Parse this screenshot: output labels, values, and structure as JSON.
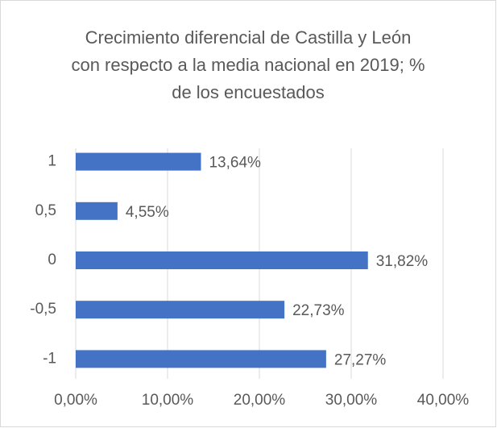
{
  "chart_data": {
    "type": "bar",
    "orientation": "horizontal",
    "title": "Crecimiento diferencial de Castilla y León con respecto a la media nacional en 2019; % de los encuestados",
    "categories": [
      "1",
      "0,5",
      "0",
      "-0,5",
      "-1"
    ],
    "values": [
      13.64,
      4.55,
      31.82,
      22.73,
      27.27
    ],
    "value_labels": [
      "13,64%",
      "4,55%",
      "31,82%",
      "22,73%",
      "27,27%"
    ],
    "color": "#4472c4",
    "xlim": [
      0,
      40
    ],
    "xticks": [
      {
        "value": 0,
        "label": "0,00%"
      },
      {
        "value": 10,
        "label": "10,00%"
      },
      {
        "value": 20,
        "label": "20,00%"
      },
      {
        "value": 30,
        "label": "30,00%"
      },
      {
        "value": 40,
        "label": "40,00%"
      }
    ],
    "grid": true
  }
}
